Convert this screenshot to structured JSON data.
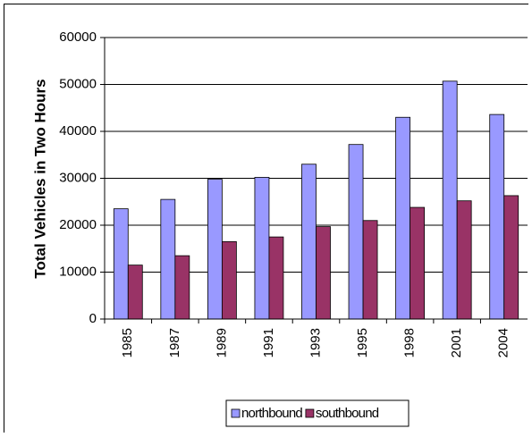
{
  "chart_data": {
    "type": "bar",
    "y_label": "Total Vehicles in Two Hours",
    "categories": [
      "1985",
      "1987",
      "1989",
      "1991",
      "1993",
      "1995",
      "1998",
      "2001",
      "2004"
    ],
    "series": [
      {
        "name": "northbound",
        "color": "#9999ff",
        "values": [
          23500,
          25500,
          29800,
          30200,
          33000,
          37200,
          43000,
          50700,
          43600
        ]
      },
      {
        "name": "southbound",
        "color": "#993366",
        "values": [
          11500,
          13500,
          16500,
          17500,
          19700,
          21000,
          23800,
          25200,
          26300
        ]
      }
    ],
    "ylim": [
      0,
      60000
    ],
    "yticks": [
      0,
      10000,
      20000,
      30000,
      40000,
      50000,
      60000
    ],
    "grid": true,
    "legend": "bottom"
  }
}
